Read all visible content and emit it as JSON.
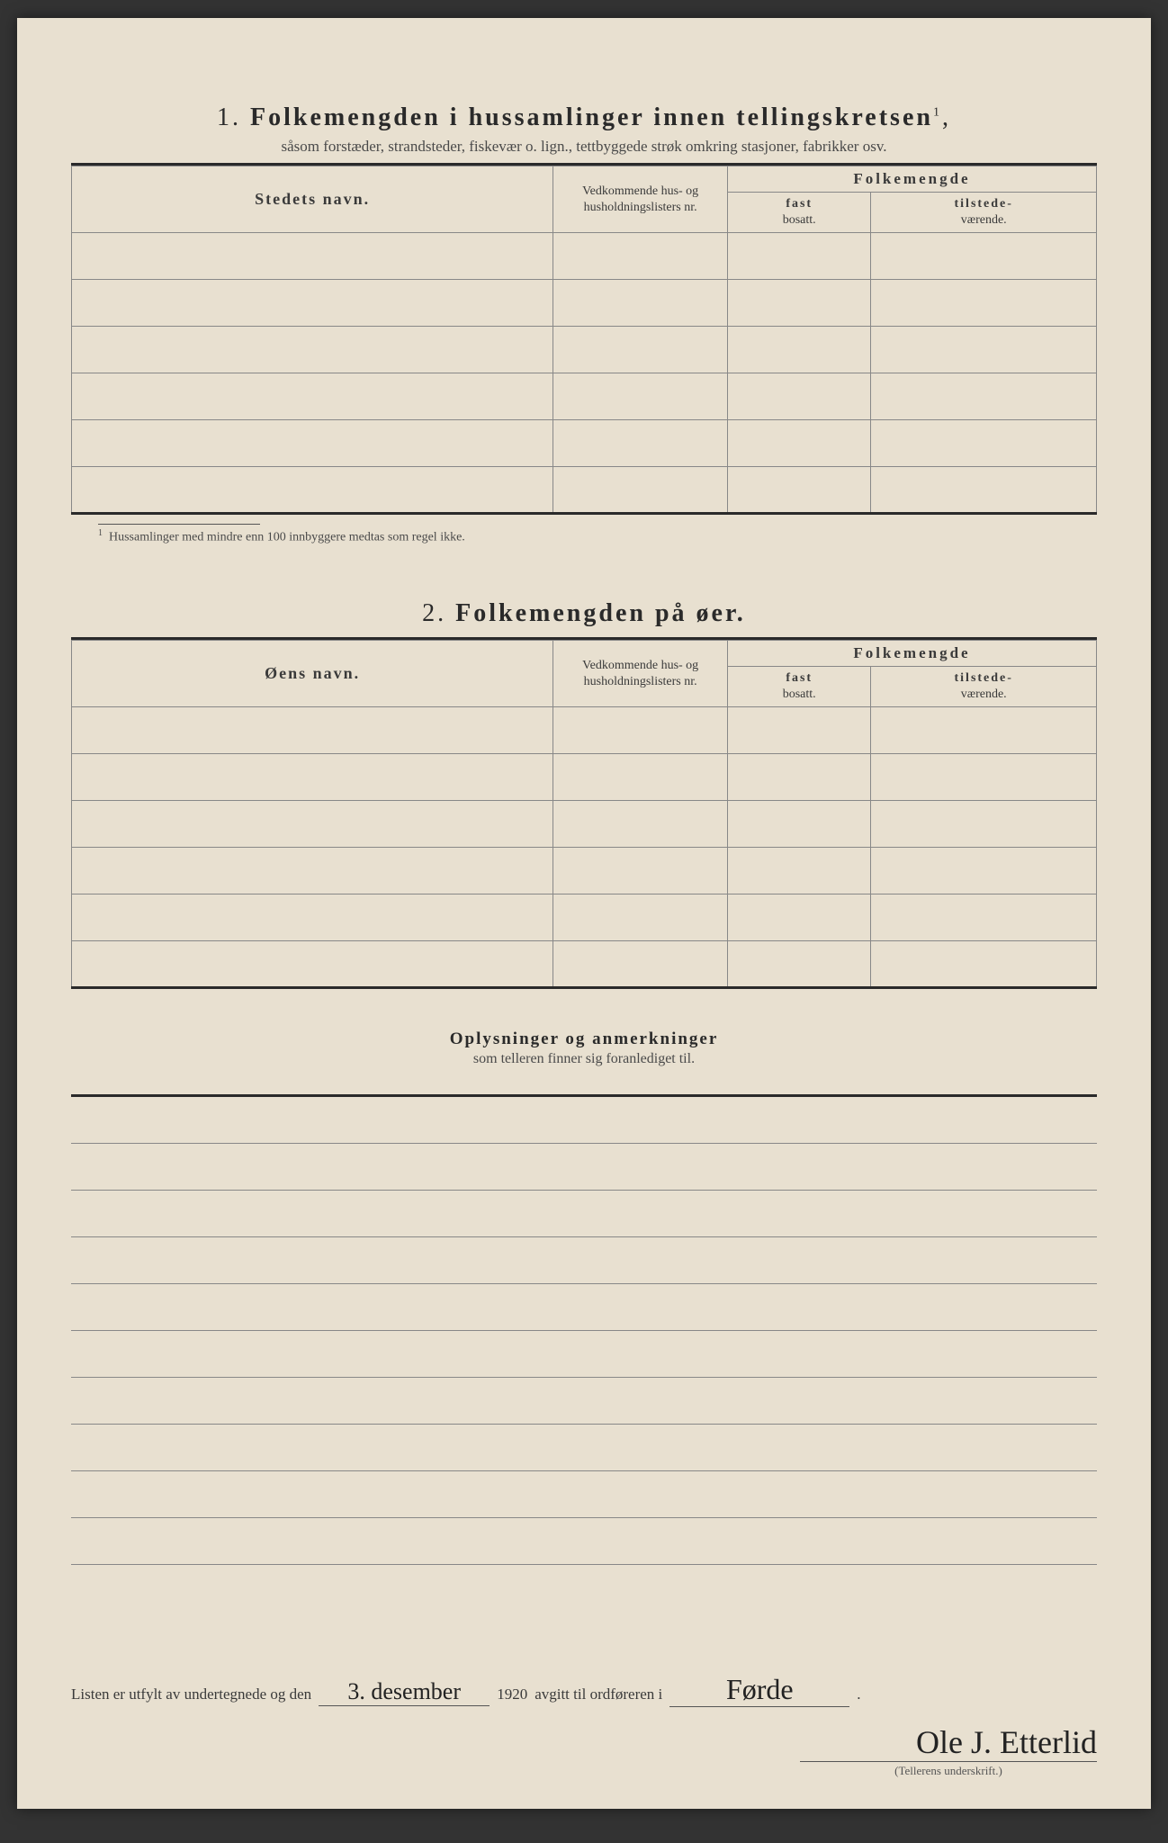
{
  "section1": {
    "num": "1.",
    "title": "Folkemengden i hussamlinger innen tellingskretsen",
    "title_sup": "1",
    "subtitle": "såsom forstæder, strandsteder, fiskevær o. lign., tettbyggede strøk omkring stasjoner, fabrikker osv.",
    "col_name": "Stedets navn.",
    "col_ref": "Vedkommende hus- og husholdningslisters nr.",
    "col_folk": "Folkemengde",
    "col_fast_top": "fast",
    "col_fast_bot": "bosatt.",
    "col_til_top": "tilstede-",
    "col_til_bot": "værende.",
    "footnote": "Hussamlinger med mindre enn 100 innbyggere medtas som regel ikke.",
    "row_count": 6
  },
  "section2": {
    "num": "2.",
    "title": "Folkemengden på øer.",
    "col_name": "Øens navn.",
    "col_ref": "Vedkommende hus- og husholdningslisters nr.",
    "col_folk": "Folkemengde",
    "col_fast_top": "fast",
    "col_fast_bot": "bosatt.",
    "col_til_top": "tilstede-",
    "col_til_bot": "værende.",
    "row_count": 6
  },
  "section3": {
    "title": "Oplysninger og anmerkninger",
    "subtitle": "som telleren finner sig foranlediget til.",
    "line_count": 10
  },
  "signature": {
    "text_before_date": "Listen er utfylt av undertegnede og den",
    "date_handwritten": "3. desember",
    "year": "1920",
    "text_after_year": "avgitt til ordføreren i",
    "place_handwritten": "Førde",
    "signer": "Ole J. Etterlid",
    "caption": "(Tellerens underskrift.)"
  },
  "colors": {
    "paper": "#e8e0d0",
    "ink": "#2a2a2a",
    "rule": "#888888"
  }
}
